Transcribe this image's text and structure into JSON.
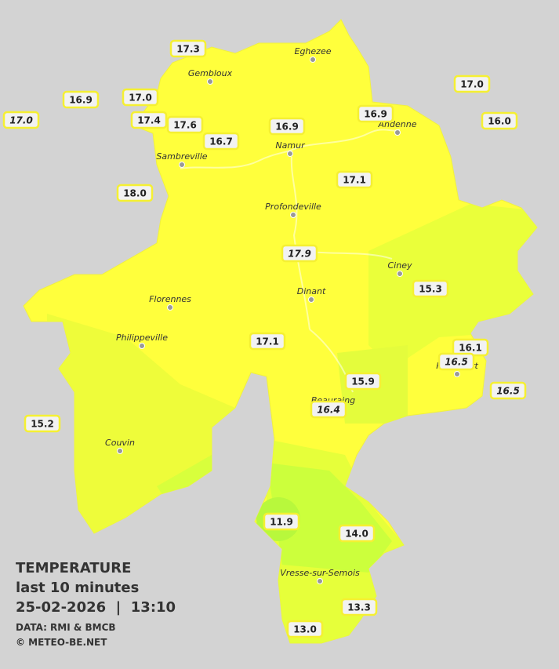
{
  "stations": [
    {
      "label": "17.3",
      "italic": false
    },
    {
      "label": "16.9",
      "italic": false
    },
    {
      "label": "17.0",
      "italic": false
    },
    {
      "label": "17.0",
      "italic": true
    },
    {
      "label": "17.4",
      "italic": false
    },
    {
      "label": "17.6",
      "italic": false
    },
    {
      "label": "16.7",
      "italic": false
    },
    {
      "label": "16.9",
      "italic": false
    },
    {
      "label": "16.9",
      "italic": false
    },
    {
      "label": "17.0",
      "italic": false
    },
    {
      "label": "16.0",
      "italic": false
    },
    {
      "label": "18.0",
      "italic": false
    },
    {
      "label": "17.1",
      "italic": false
    },
    {
      "label": "17.9",
      "italic": true
    },
    {
      "label": "15.3",
      "italic": false
    },
    {
      "label": "17.1",
      "italic": false
    },
    {
      "label": "16.1",
      "italic": false
    },
    {
      "label": "16.5",
      "italic": true
    },
    {
      "label": "15.9",
      "italic": false
    },
    {
      "label": "16.4",
      "italic": true
    },
    {
      "label": "16.5",
      "italic": true
    },
    {
      "label": "15.2",
      "italic": false
    },
    {
      "label": "11.9",
      "italic": false
    },
    {
      "label": "14.0",
      "italic": false
    },
    {
      "label": "13.3",
      "italic": false
    },
    {
      "label": "13.0",
      "italic": false
    }
  ],
  "towns": [
    "Eghezee",
    "Gembloux",
    "Andenne",
    "Namur",
    "Sambreville",
    "Profondeville",
    "Ciney",
    "Dinant",
    "Florennes",
    "Philippeville",
    "Rochefort",
    "Beauraing",
    "Couvin",
    "Vresse-sur-Semois"
  ],
  "legend": {
    "title": "TEMPERATURE",
    "subtitle": "last 10 minutes",
    "datetime": "25-02-2026  |  13:10",
    "source": "DATA: RMI & BMCB",
    "credit": "© METEO-BE.NET"
  }
}
